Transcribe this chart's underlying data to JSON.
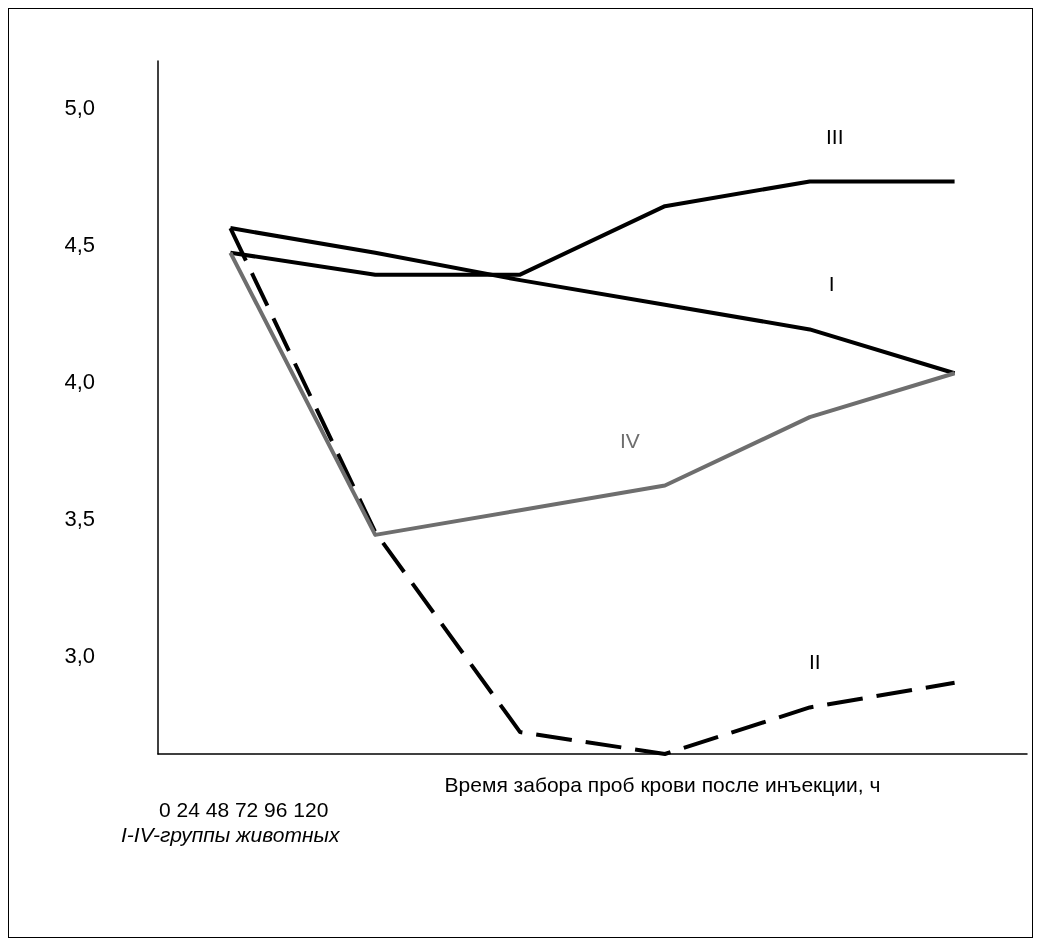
{
  "chart_data": {
    "type": "line",
    "xlabel": "Время забора проб крови после инъекции, ч",
    "categories": [
      null,
      null,
      null,
      null,
      null,
      null
    ],
    "series": [
      {
        "name": "I",
        "color": "#000000",
        "line_style": "solid",
        "values": [
          4.56,
          4.47,
          4.37,
          4.28,
          4.19,
          4.03
        ]
      },
      {
        "name": "II",
        "color": "#000000",
        "line_style": "dashed",
        "values": [
          4.56,
          3.45,
          2.72,
          2.64,
          2.81,
          2.9
        ]
      },
      {
        "name": "III",
        "color": "#000000",
        "line_style": "solid",
        "values": [
          4.47,
          4.39,
          4.39,
          4.64,
          4.73,
          4.73
        ]
      },
      {
        "name": "IV",
        "color": "#6e6e6e",
        "line_style": "solid",
        "values": [
          4.47,
          3.44,
          3.53,
          3.62,
          3.87,
          4.03
        ]
      }
    ],
    "ylim": [
      2.64,
      5.17
    ],
    "yticks": [
      {
        "value": 3,
        "label": "3,0"
      },
      {
        "value": 3.5,
        "label": "3,5"
      },
      {
        "value": 4,
        "label": "4,0"
      },
      {
        "value": 4.5,
        "label": "4,5"
      },
      {
        "value": 5,
        "label": "5,0"
      }
    ],
    "grid": false,
    "legend": false,
    "marker": "none",
    "annotations": [
      "0 24 48 72 96 120",
      "I-IV-группы животных"
    ]
  }
}
